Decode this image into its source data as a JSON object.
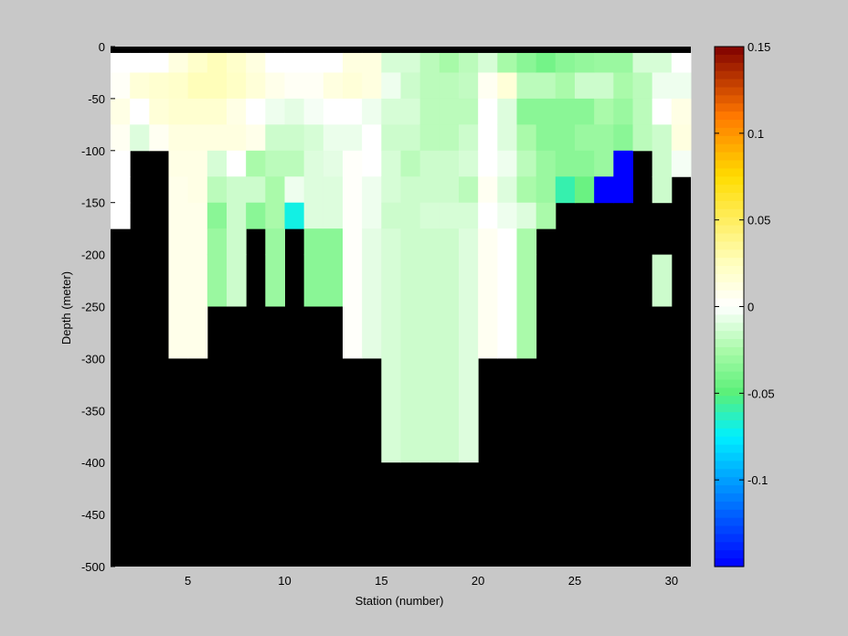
{
  "chart_data": {
    "type": "heatmap",
    "title": "",
    "xlabel": "Station (number)",
    "ylabel": "Depth (meter)",
    "xlim": [
      1,
      31
    ],
    "ylim": [
      -500,
      0
    ],
    "xticks": [
      5,
      10,
      15,
      20,
      25,
      30
    ],
    "xtick_labels": [
      "5",
      "10",
      "15",
      "20",
      "25",
      "30"
    ],
    "yticks": [
      0,
      -50,
      -100,
      -150,
      -200,
      -250,
      -300,
      -350,
      -400,
      -450,
      -500
    ],
    "ytick_labels": [
      "0",
      "-50",
      "-100",
      "-150",
      "-200",
      "-250",
      "-300",
      "-350",
      "-400",
      "-450",
      "-500"
    ],
    "colorbar": {
      "range": [
        -0.15,
        0.15
      ],
      "ticks": [
        0.15,
        0.1,
        0.05,
        0,
        -0.05,
        -0.1
      ],
      "tick_labels": [
        "0.15",
        "0.1",
        "0.05",
        "0",
        "-0.05",
        "-0.1"
      ],
      "colormap": "jet-white-center"
    },
    "grid": false,
    "cell_depth_step": 12.5,
    "background_color": "#000000",
    "station_bottom_depth": [
      -200,
      -100,
      -100,
      -300,
      -300,
      -250,
      -250,
      -200,
      -250,
      -200,
      -250,
      -250,
      -300,
      -300,
      -400,
      -400,
      -400,
      -400,
      -400,
      -300,
      -300,
      -300,
      -200,
      -200,
      -150,
      -200,
      -200,
      -100,
      -250,
      -150,
      -125
    ],
    "anomaly": [
      [
        0.0,
        0.0,
        0.0,
        0.012,
        0.02,
        0.026,
        0.02,
        0.012,
        0.0,
        0.0,
        0.0,
        0.0,
        0.012,
        0.012,
        -0.012,
        -0.012,
        -0.02,
        -0.026,
        -0.02,
        -0.012,
        -0.026,
        -0.035,
        -0.042,
        -0.035,
        -0.032,
        -0.03,
        -0.03,
        -0.012,
        -0.012,
        0.0
      ],
      [
        0.003,
        0.015,
        0.018,
        0.02,
        0.026,
        0.026,
        0.022,
        0.015,
        0.008,
        0.004,
        0.004,
        0.012,
        0.015,
        0.012,
        -0.005,
        -0.015,
        -0.02,
        -0.02,
        -0.018,
        0.005,
        0.015,
        -0.02,
        -0.02,
        -0.025,
        -0.015,
        -0.015,
        -0.025,
        -0.02,
        -0.005,
        -0.005
      ],
      [
        0.01,
        0.0,
        0.015,
        0.018,
        0.018,
        0.018,
        0.01,
        0.0,
        -0.005,
        -0.008,
        -0.003,
        0.0,
        0.0,
        -0.005,
        -0.012,
        -0.012,
        -0.02,
        -0.02,
        -0.02,
        0.0,
        -0.01,
        -0.035,
        -0.035,
        -0.035,
        -0.035,
        -0.025,
        -0.03,
        -0.02,
        0.0,
        0.01
      ],
      [
        0.005,
        -0.01,
        0.005,
        0.012,
        0.012,
        0.012,
        0.012,
        0.008,
        -0.015,
        -0.015,
        -0.012,
        -0.006,
        -0.006,
        0.0,
        -0.015,
        -0.015,
        -0.02,
        -0.02,
        -0.015,
        0.0,
        -0.01,
        -0.025,
        -0.035,
        -0.035,
        -0.03,
        -0.03,
        -0.035,
        -0.02,
        -0.015,
        0.012
      ],
      [
        0.0,
        -999,
        -999,
        0.01,
        0.01,
        -0.012,
        0.0,
        -0.025,
        -0.02,
        -0.02,
        -0.01,
        -0.008,
        0.002,
        0.0,
        -0.012,
        -0.02,
        -0.015,
        -0.015,
        -0.012,
        0.0,
        -0.005,
        -0.02,
        -0.03,
        -0.035,
        -0.035,
        -0.03,
        -0.999,
        -0.015,
        -0.015,
        -0.003
      ],
      [
        0.0,
        -999,
        -999,
        0.008,
        0.01,
        -0.02,
        -0.015,
        -0.015,
        -0.025,
        -0.005,
        -0.01,
        -0.01,
        0.002,
        -0.005,
        -0.012,
        -0.015,
        -0.015,
        -0.015,
        -0.02,
        0.005,
        -0.01,
        -0.025,
        -0.03,
        -0.06,
        -0.045,
        -0.999,
        -0.999,
        -0.015,
        -0.015,
        -999
      ],
      [
        0.0,
        -999,
        -999,
        0.008,
        0.008,
        -0.035,
        -0.015,
        -0.035,
        -0.025,
        -0.07,
        -0.01,
        -0.01,
        0.002,
        -0.005,
        -0.015,
        -0.015,
        -0.012,
        -0.012,
        -0.012,
        0.0,
        -0.005,
        -0.01,
        -0.025,
        -999,
        -0.045,
        -999,
        -999,
        -0.015,
        -999,
        -999
      ],
      [
        -999,
        -999,
        -999,
        0.008,
        0.008,
        -0.03,
        -0.015,
        -999,
        -0.03,
        -999,
        -0.035,
        -0.035,
        0.002,
        -0.008,
        -0.012,
        -0.015,
        -0.015,
        -0.015,
        -0.01,
        0.005,
        0.0,
        -0.025,
        -999,
        -999,
        -999,
        -999,
        -999,
        -0.003,
        -999,
        -999
      ]
    ]
  }
}
